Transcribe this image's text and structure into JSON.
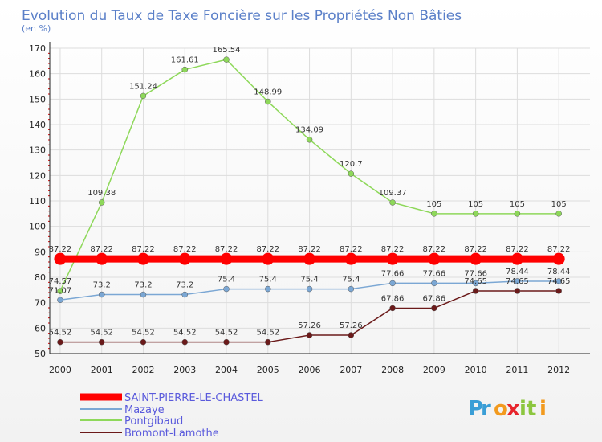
{
  "chart_data": {
    "type": "line",
    "title": "Evolution du Taux de Taxe Foncière sur les Propriétés Non Bâties",
    "subtitle": "(en %)",
    "x": [
      "2000",
      "2001",
      "2002",
      "2003",
      "2004",
      "2005",
      "2006",
      "2007",
      "2008",
      "2009",
      "2010",
      "2011",
      "2012"
    ],
    "y_ticks": [
      "50",
      "60",
      "70",
      "80",
      "90",
      "100",
      "110",
      "120",
      "130",
      "140",
      "150",
      "160",
      "170"
    ],
    "ylim": [
      50,
      170
    ],
    "grid": true,
    "legend_position": "bottom-left",
    "series": [
      {
        "name": "SAINT-PIERRE-LE-CHASTEL",
        "color": "#ff0000",
        "values": [
          87.22,
          87.22,
          87.22,
          87.22,
          87.22,
          87.22,
          87.22,
          87.22,
          87.22,
          87.22,
          87.22,
          87.22,
          87.22
        ],
        "labels": [
          "87.22",
          "87.22",
          "87.22",
          "87.22",
          "87.22",
          "87.22",
          "87.22",
          "87.22",
          "87.22",
          "87.22",
          "87.22",
          "87.22",
          "87.22"
        ]
      },
      {
        "name": "Mazaye",
        "color": "#7ba7d4",
        "values": [
          71.07,
          73.2,
          73.2,
          73.2,
          75.4,
          75.4,
          75.4,
          75.4,
          77.66,
          77.66,
          77.66,
          78.44,
          78.44
        ],
        "labels": [
          "71.07",
          "73.2",
          "73.2",
          "73.2",
          "75.4",
          "75.4",
          "75.4",
          "75.4",
          "77.66",
          "77.66",
          "77.66",
          "78.44",
          "78.44"
        ]
      },
      {
        "name": "Pontgibaud",
        "color": "#8ed85a",
        "values": [
          74.57,
          109.38,
          151.24,
          161.61,
          165.54,
          148.99,
          134.09,
          120.7,
          109.37,
          105,
          105,
          105,
          105
        ],
        "labels": [
          "74.57",
          "109.38",
          "151.24",
          "161.61",
          "165.54",
          "148.99",
          "134.09",
          "120.7",
          "109.37",
          "105",
          "105",
          "105",
          "105"
        ]
      },
      {
        "name": "Bromont-Lamothe",
        "color": "#6b1a1a",
        "values": [
          54.52,
          54.52,
          54.52,
          54.52,
          54.52,
          54.52,
          57.26,
          57.26,
          67.86,
          67.86,
          74.65,
          74.65,
          74.65
        ],
        "labels": [
          "54.52",
          "54.52",
          "54.52",
          "54.52",
          "54.52",
          "54.52",
          "57.26",
          "57.26",
          "67.86",
          "67.86",
          "74.65",
          "74.65",
          "74.65"
        ]
      }
    ]
  },
  "logo": {
    "text": "Proxiti"
  }
}
